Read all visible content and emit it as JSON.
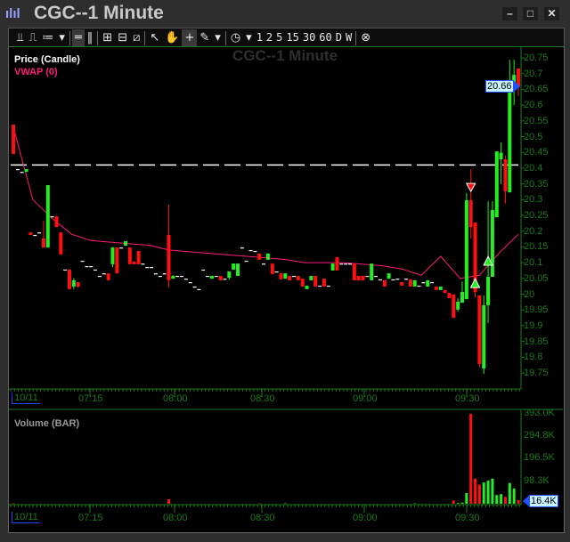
{
  "window": {
    "title": "CGC--1 Minute",
    "app_icon": "bar-chart-icon",
    "controls": [
      "minimize",
      "maximize",
      "close"
    ]
  },
  "toolbar": {
    "chart_tools": [
      "chart-type-icon",
      "indicators-icon",
      "studies-icon"
    ],
    "intervals": [
      "1",
      "2",
      "5",
      "15",
      "30",
      "60",
      "D",
      "W"
    ]
  },
  "watermark": "CGC--1 Minute",
  "price_panel": {
    "legend_price": "Price (Candle)",
    "legend_vwap": "VWAP (0)",
    "last_price": "20.66",
    "reference_line": 20.41,
    "y_ticks": [
      "20.75",
      "20.7",
      "20.65",
      "20.6",
      "20.55",
      "20.5",
      "20.45",
      "20.4",
      "20.35",
      "20.3",
      "20.25",
      "20.2",
      "20.15",
      "20.1",
      "20.05",
      "20",
      "19.95",
      "19.9",
      "19.85",
      "19.8",
      "19.75"
    ]
  },
  "volume_panel": {
    "legend": "Volume (BAR)",
    "last_volume": "16.4K",
    "y_ticks": [
      "393.0K",
      "294.8K",
      "196.5K",
      "98.3K"
    ]
  },
  "time_axis": {
    "date": "10/11",
    "labels": [
      "07:15",
      "08:00",
      "08:30",
      "09:00",
      "09:30"
    ]
  },
  "colors": {
    "up": "#22ee22",
    "down": "#ff1010",
    "vwap": "#ff1a7a",
    "axis": "#1c7a1c",
    "doji": "#ffffff"
  },
  "chart_data": {
    "type": "candlestick",
    "ylim": [
      19.75,
      20.75
    ],
    "volume_max": 393000,
    "candles": [
      [
        20.538,
        20.538,
        20.445,
        20.445,
        2000
      ],
      [
        20.397
      ],
      [
        20.388
      ],
      [
        20.388,
        20.397,
        20.388,
        20.397
      ],
      [
        20.196,
        20.196,
        20.188,
        20.188
      ],
      [
        20.188
      ],
      [
        20.196
      ],
      [
        20.177,
        20.233,
        20.148,
        20.148
      ],
      [
        20.148,
        20.346,
        20.148,
        20.346
      ],
      [
        20.247
      ],
      [
        20.247,
        20.247,
        20.213,
        20.213
      ],
      [
        20.196,
        20.196,
        20.126,
        20.126
      ],
      [
        20.078
      ],
      [
        20.078,
        20.078,
        20.016,
        20.016
      ],
      [
        20.024,
        20.05,
        20.016,
        20.044
      ],
      [
        20.038,
        20.038,
        20.02,
        20.024
      ],
      [
        20.106
      ],
      [
        20.089
      ],
      [
        20.089
      ],
      [
        20.078
      ],
      [
        20.058
      ],
      [
        20.066
      ],
      [
        20.066,
        20.066,
        20.044,
        20.044
      ],
      [
        20.095,
        20.15,
        20.085,
        20.148
      ],
      [
        20.148,
        20.148,
        20.066,
        20.066
      ],
      [
        20.148
      ],
      [
        20.154,
        20.168,
        20.154,
        20.168
      ],
      [
        20.148,
        20.148,
        20.095,
        20.095
      ],
      [
        20.103,
        20.103,
        20.095,
        20.095
      ],
      [
        20.137,
        20.137,
        20.095,
        20.095
      ],
      [
        20.097
      ],
      [
        20.086
      ],
      [
        20.086
      ],
      [
        20.066
      ],
      [
        20.058
      ],
      [
        20.066
      ],
      [
        20.188,
        20.284,
        20.021,
        20.044,
        20000
      ],
      [
        20.049,
        20.06,
        20.049,
        20.058
      ],
      [
        20.058
      ],
      [
        20.058
      ],
      [
        20.049
      ],
      [
        20.038
      ],
      [
        20.024
      ],
      [
        20.016
      ],
      [
        20.078
      ],
      [
        20.058
      ],
      [
        20.049,
        20.058,
        20.049,
        20.058
      ],
      [
        20.058
      ],
      [
        20.058,
        20.058,
        20.044,
        20.044
      ],
      [
        20.049
      ],
      [
        20.052,
        20.072,
        20.045,
        20.072
      ],
      [
        20.078,
        20.097,
        20.078,
        20.097
      ],
      [
        20.058,
        20.097,
        20.058,
        20.097
      ],
      [
        20.148
      ],
      [
        20.106
      ],
      [
        20.14
      ],
      [
        20.137
      ],
      [
        20.129,
        20.129,
        20.109,
        20.109,
        1500
      ],
      [
        20.097
      ],
      [
        20.109,
        20.129,
        20.109,
        20.129
      ],
      [
        20.097,
        20.097,
        20.064,
        20.064
      ],
      [
        20.072
      ],
      [
        20.066,
        20.066,
        20.047,
        20.047
      ],
      [
        20.049,
        20.066,
        20.049,
        20.066,
        1500
      ],
      [
        20.058,
        20.058,
        20.044,
        20.044
      ],
      [
        20.058
      ],
      [
        20.058,
        20.058,
        20.044,
        20.044
      ],
      [
        20.049,
        20.049,
        20.024,
        20.024
      ],
      [
        20.016,
        20.027,
        20.016,
        20.027
      ],
      [
        20.044,
        20.058,
        20.044,
        20.058
      ],
      [
        20.058,
        20.058,
        20.024,
        20.024
      ],
      [
        20.027
      ],
      [
        20.049,
        20.049,
        20.024,
        20.024
      ],
      [
        20.027
      ],
      [
        20.075,
        20.097,
        20.075,
        20.097
      ],
      [
        20.117,
        20.117,
        20.075,
        20.075
      ],
      [
        20.097
      ],
      [
        20.097
      ],
      [
        20.097
      ],
      [
        20.097,
        20.097,
        20.044,
        20.044
      ],
      [
        20.058,
        20.058,
        20.044,
        20.044
      ],
      [
        20.058,
        20.058,
        20.044,
        20.044
      ],
      [
        20.058
      ],
      [
        20.044,
        20.097,
        20.044,
        20.097
      ],
      [
        20.058
      ],
      [
        20.047
      ],
      [
        20.044,
        20.044,
        20.024,
        20.024
      ],
      [
        20.049,
        20.066,
        20.049,
        20.066
      ],
      [
        20.047
      ],
      [
        20.049
      ],
      [
        20.038,
        20.038,
        20.027,
        20.027
      ],
      [
        20.049
      ],
      [
        20.047,
        20.047,
        20.024,
        20.024
      ],
      [
        20.024,
        20.044,
        20.024,
        20.044,
        1500
      ],
      [
        20.027
      ],
      [
        20.038
      ],
      [
        20.024,
        20.044,
        20.024,
        20.044
      ],
      [
        20.038
      ],
      [
        20.024,
        20.024,
        20.013,
        20.013
      ],
      [
        20.013,
        20.024,
        20.013,
        20.024
      ],
      [
        20.013,
        20.013,
        20.004,
        20.004
      ],
      [
        20.004,
        20.004,
        19.987,
        19.987
      ],
      [
        19.999,
        19.999,
        19.925,
        19.925,
        14000
      ],
      [
        19.951,
        19.987,
        19.945,
        19.976,
        3000
      ],
      [
        19.973,
        20.04,
        19.973,
        20.007,
        5000
      ],
      [
        19.984,
        20.321,
        19.984,
        20.298,
        47000
      ],
      [
        20.298,
        20.397,
        20.177,
        20.213,
        393000
      ],
      [
        20.227,
        20.227,
        19.99,
        20.007,
        110000
      ],
      [
        19.996,
        19.996,
        19.767,
        19.778,
        84000
      ],
      [
        19.764,
        19.996,
        19.747,
        19.965,
        93000
      ],
      [
        19.965,
        20.295,
        19.908,
        20.055,
        101000
      ],
      [
        20.055,
        20.295,
        20.055,
        20.267,
        110000
      ],
      [
        20.244,
        20.453,
        20.244,
        20.453,
        38000
      ],
      [
        20.428,
        20.482,
        20.349,
        20.449,
        42000
      ],
      [
        20.428,
        20.44,
        20.287,
        20.326,
        30000
      ],
      [
        20.323,
        20.744,
        20.323,
        20.657,
        91000
      ],
      [
        20.657,
        20.744,
        20.6,
        20.696,
        67000
      ],
      [
        20.716,
        20.716,
        20.629,
        20.657,
        16400
      ]
    ],
    "vwap": [
      20.53,
      20.3,
      20.24,
      20.19,
      20.17,
      20.165,
      20.16,
      20.155,
      20.14,
      20.135,
      20.13,
      20.125,
      20.12,
      20.115,
      20.11,
      20.1,
      20.1,
      20.1,
      20.095,
      20.09,
      20.08,
      20.06,
      20.12,
      20.05,
      20.06,
      20.13,
      20.19
    ],
    "signals": [
      {
        "type": "sell",
        "candle": 107,
        "price": 20.34
      },
      {
        "type": "buy",
        "candle": 108,
        "price": 20.035
      },
      {
        "type": "buy",
        "candle": 111,
        "price": 20.106
      }
    ]
  }
}
